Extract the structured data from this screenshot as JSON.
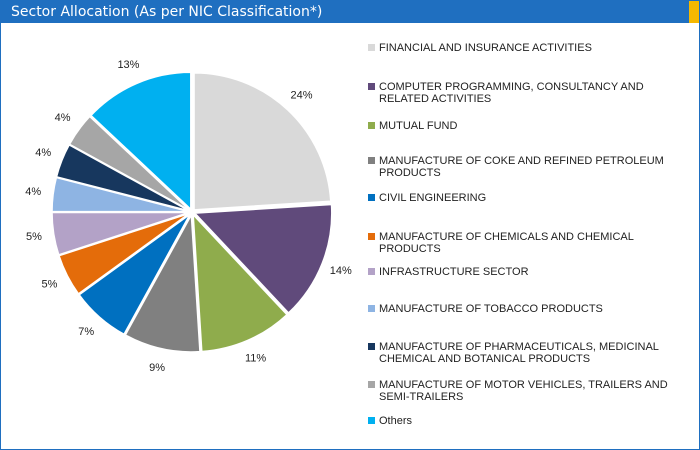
{
  "chart_data": {
    "type": "pie",
    "title": "Sector Allocation (As per NIC Classification*)",
    "categories": [
      "FINANCIAL AND INSURANCE ACTIVITIES",
      "COMPUTER PROGRAMMING, CONSULTANCY AND RELATED ACTIVITIES",
      "MUTUAL FUND",
      "MANUFACTURE OF COKE AND REFINED PETROLEUM PRODUCTS",
      "CIVIL ENGINEERING",
      "MANUFACTURE OF CHEMICALS AND CHEMICAL PRODUCTS",
      "INFRASTRUCTURE SECTOR",
      "MANUFACTURE OF TOBACCO PRODUCTS",
      "MANUFACTURE OF PHARMACEUTICALS, MEDICINAL CHEMICAL AND BOTANICAL PRODUCTS",
      "MANUFACTURE OF MOTOR VEHICLES, TRAILERS AND SEMI-TRAILERS",
      "Others"
    ],
    "values": [
      24,
      14,
      11,
      9,
      7,
      5,
      5,
      4,
      4,
      4,
      13
    ],
    "value_labels": [
      "24%",
      "14%",
      "11%",
      "9%",
      "7%",
      "5%",
      "5%",
      "4%",
      "4%",
      "4%",
      "13%"
    ],
    "colors": [
      "#d9d9d9",
      "#604a7b",
      "#8fac4c",
      "#808080",
      "#0070c0",
      "#e46c0a",
      "#b3a2c7",
      "#8eb4e3",
      "#17375e",
      "#a6a6a6",
      "#00b0f0"
    ]
  }
}
